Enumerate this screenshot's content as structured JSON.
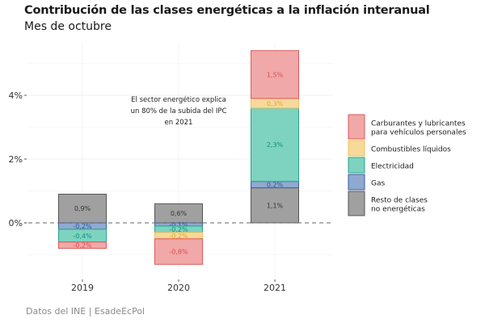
{
  "header": {
    "title": "Contribución de las clases energéticas a la inflación interanual",
    "subtitle": "Mes de octubre"
  },
  "footer": {
    "caption": "Datos del INE | EsadeEcPol"
  },
  "chart_data": {
    "type": "bar",
    "stacked": true,
    "title": "Contribución de las clases energéticas a la inflación interanual",
    "subtitle": "Mes de octubre",
    "xlabel": "",
    "ylabel": "",
    "categories": [
      "2019",
      "2020",
      "2021"
    ],
    "ylim": [
      -1.5,
      5.5
    ],
    "yticks": [
      0,
      2,
      4
    ],
    "ytick_labels": [
      "0%",
      "2%",
      "4%"
    ],
    "grid": true,
    "zero_line": "dashed",
    "legend_position": "right",
    "series": [
      {
        "name": "Resto de clases no energéticas",
        "legend": [
          "Resto de clases",
          "no energéticas"
        ],
        "fill": "#a0a0a0",
        "stroke": "#555555",
        "label_color": "#333333",
        "values": [
          0.9,
          0.6,
          1.1
        ],
        "labels": [
          "0,9%",
          "0,6%",
          "1,1%"
        ]
      },
      {
        "name": "Gas",
        "legend": [
          "Gas"
        ],
        "fill": "#8faad0",
        "stroke": "#3a5f9a",
        "label_color": "#2f5597",
        "values": [
          -0.2,
          -0.1,
          0.2
        ],
        "labels": [
          "-0,2%",
          "-0,1%",
          "0,2%"
        ]
      },
      {
        "name": "Electricidad",
        "legend": [
          "Electricidad"
        ],
        "fill": "#7dd3c0",
        "stroke": "#2aa58a",
        "label_color": "#138f73",
        "values": [
          -0.4,
          -0.2,
          2.3
        ],
        "labels": [
          "-0,4%",
          "-0,2%",
          "2,3%"
        ]
      },
      {
        "name": "Combustibles líquidos",
        "legend": [
          "Combustibles líquidos"
        ],
        "fill": "#f8d99a",
        "stroke": "#f0c060",
        "label_color": "#e0a930",
        "values": [
          0.0,
          -0.2,
          0.3
        ],
        "labels": [
          "",
          "-0,2%",
          "0,3%"
        ]
      },
      {
        "name": "Carburantes y lubricantes para vehículos personales",
        "legend": [
          "Carburantes y lubricantes",
          "para vehículos personales"
        ],
        "fill": "#f0a8a8",
        "stroke": "#e05a5a",
        "label_color": "#e04a4a",
        "values": [
          -0.2,
          -0.8,
          1.5
        ],
        "labels": [
          "-0,2%",
          "-0,8%",
          "1,5%"
        ]
      }
    ],
    "legend_order": [
      "Carburantes y lubricantes para vehículos personales",
      "Combustibles líquidos",
      "Electricidad",
      "Gas",
      "Resto de clases no energéticas"
    ],
    "annotations": [
      {
        "text": [
          "El sector energético explica",
          "un 80% de la subida del IPC",
          "en 2021"
        ],
        "anchor_category": "2020",
        "anchor_y": 3.6
      }
    ]
  }
}
